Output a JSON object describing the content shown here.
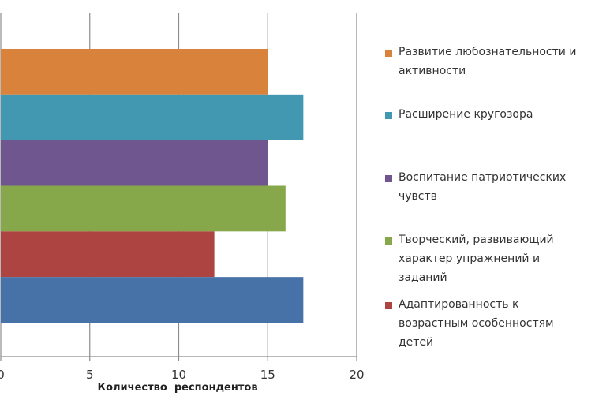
{
  "chart_data": {
    "type": "bar",
    "orientation": "horizontal",
    "categories": [
      "Развитие любознательности и активности",
      "Расширение кругозора",
      "Воспитание патриотических чувств",
      "Творческий, развивающий характер упражнений и заданий",
      "Адаптированность к возрастным особенностям детей",
      ""
    ],
    "values": [
      15,
      17,
      15,
      16,
      12,
      17
    ],
    "colors": [
      "#D8823B",
      "#4298B0",
      "#70568F",
      "#86A84A",
      "#AE4441",
      "#4672A8"
    ],
    "xlabel": "Количество  респондентов",
    "xlim": [
      0,
      20
    ],
    "xticks": [
      "0",
      "5",
      "10",
      "15",
      "20"
    ],
    "grid": true,
    "legend_position": "right"
  },
  "legend": [
    {
      "label": "Развитие любознательности и активности",
      "color": "#D8823B"
    },
    {
      "label": "Расширение кругозора",
      "color": "#4298B0"
    },
    {
      "label": "Воспитание патриотических чувств",
      "color": "#70568F"
    },
    {
      "label": "Творческий, развивающий характер упражнений и заданий",
      "color": "#86A84A"
    },
    {
      "label": "Адаптированность к возрастным особенностям детей",
      "color": "#AE4441"
    }
  ]
}
